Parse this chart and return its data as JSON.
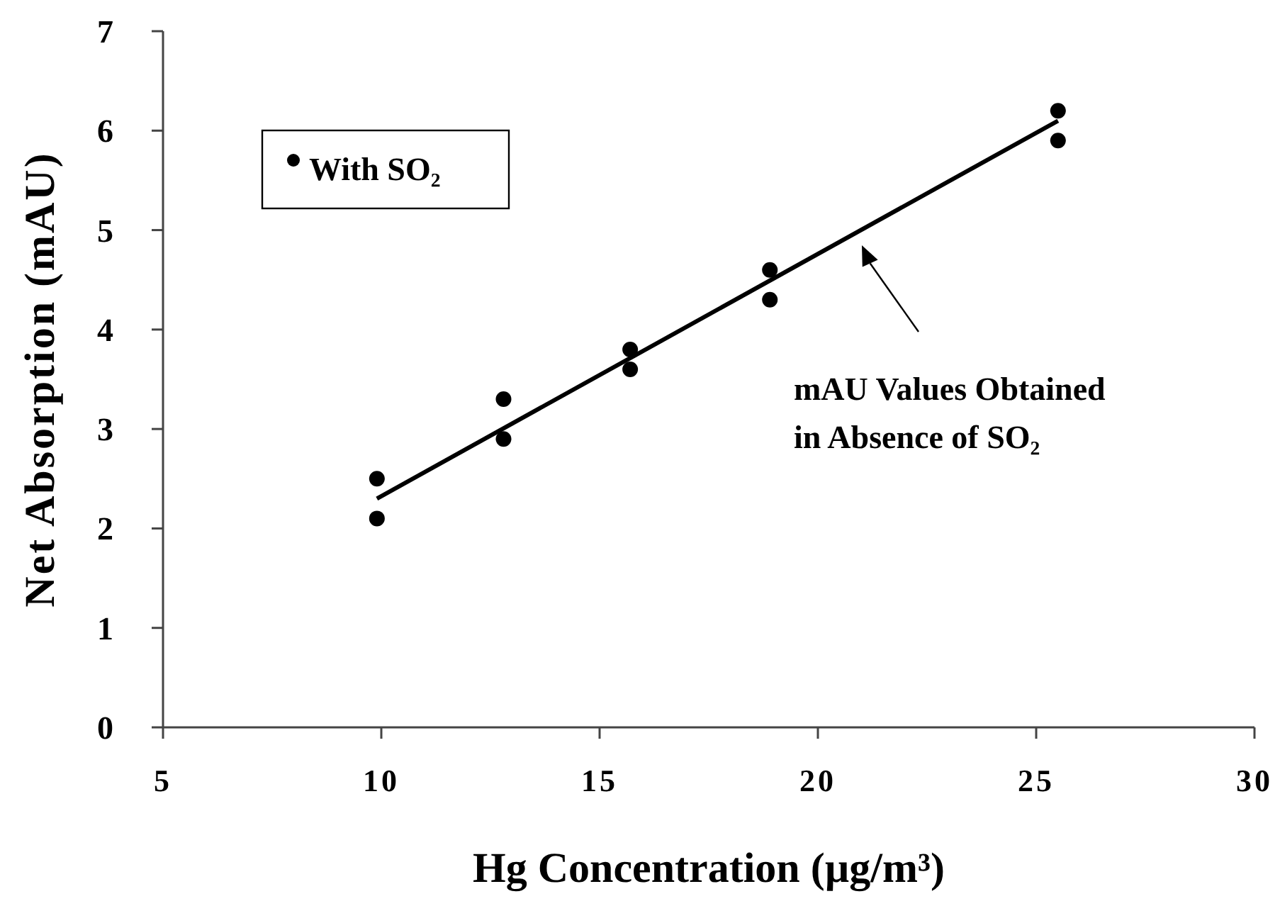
{
  "chart_data": {
    "type": "scatter",
    "xlabel": "Hg Concentration (µg/m³)",
    "ylabel": "Net Absorption (mAU)",
    "xlim": [
      5,
      30
    ],
    "xticks": [
      5,
      10,
      15,
      20,
      25,
      30
    ],
    "ylim": [
      0,
      7
    ],
    "yticks": [
      0,
      1,
      2,
      3,
      4,
      5,
      6,
      7
    ],
    "grid": false,
    "legend": "top left",
    "series": [
      {
        "name": "With SO₂",
        "marker": "circle",
        "color": "#000000",
        "x": [
          9.9,
          9.9,
          12.8,
          12.8,
          15.7,
          15.7,
          18.9,
          18.9,
          25.5,
          25.5
        ],
        "values": [
          2.5,
          2.1,
          3.3,
          2.9,
          3.8,
          3.6,
          4.6,
          4.3,
          6.2,
          5.9
        ]
      },
      {
        "type": "line",
        "color": "#000000",
        "x": [
          9.9,
          25.5
        ],
        "values": [
          2.3,
          6.1
        ],
        "line_style": "solid"
      }
    ],
    "annotations": [
      "mAU Values Obtained\nin Absence of SO₂"
    ]
  }
}
